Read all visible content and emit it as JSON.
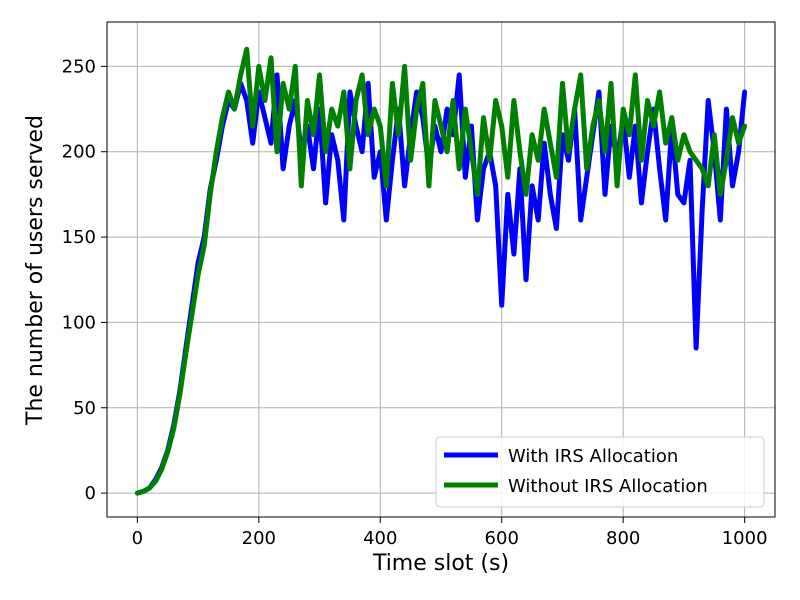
{
  "chart_data": {
    "type": "line",
    "title": "",
    "xlabel": "Time slot (s)",
    "ylabel": "The number of users served",
    "xlim": [
      -50,
      1050
    ],
    "ylim": [
      -14,
      276
    ],
    "xticks": [
      0,
      200,
      400,
      600,
      800,
      1000
    ],
    "yticks": [
      0,
      50,
      100,
      150,
      200,
      250
    ],
    "grid": true,
    "legend_position": "lower-right",
    "series": [
      {
        "name": "With IRS Allocation",
        "color": "#0000ff",
        "x": [
          0,
          10,
          20,
          30,
          40,
          50,
          60,
          70,
          80,
          90,
          100,
          110,
          120,
          130,
          140,
          150,
          160,
          170,
          180,
          190,
          200,
          210,
          220,
          230,
          240,
          250,
          260,
          270,
          280,
          290,
          300,
          310,
          320,
          330,
          340,
          350,
          360,
          370,
          380,
          390,
          400,
          410,
          420,
          430,
          440,
          450,
          460,
          470,
          480,
          490,
          500,
          510,
          520,
          530,
          540,
          550,
          560,
          570,
          580,
          590,
          600,
          610,
          620,
          630,
          640,
          650,
          660,
          670,
          680,
          690,
          700,
          710,
          720,
          730,
          740,
          750,
          760,
          770,
          780,
          790,
          800,
          810,
          820,
          830,
          840,
          850,
          860,
          870,
          880,
          890,
          900,
          910,
          920,
          930,
          940,
          950,
          960,
          970,
          980,
          990,
          1000
        ],
        "values": [
          0,
          1,
          3,
          8,
          15,
          25,
          40,
          60,
          85,
          110,
          135,
          150,
          178,
          195,
          215,
          230,
          225,
          240,
          230,
          205,
          235,
          220,
          205,
          245,
          190,
          215,
          230,
          200,
          215,
          190,
          225,
          170,
          210,
          195,
          160,
          235,
          215,
          200,
          240,
          185,
          200,
          160,
          195,
          225,
          180,
          210,
          235,
          220,
          190,
          215,
          200,
          225,
          210,
          245,
          185,
          215,
          160,
          190,
          200,
          180,
          110,
          175,
          140,
          190,
          125,
          180,
          160,
          205,
          175,
          155,
          210,
          195,
          225,
          160,
          185,
          210,
          235,
          175,
          215,
          195,
          220,
          185,
          215,
          170,
          200,
          225,
          190,
          160,
          215,
          175,
          170,
          195,
          85,
          165,
          230,
          200,
          160,
          225,
          180,
          200,
          235
        ]
      },
      {
        "name": "Without IRS Allocation",
        "color": "#008000",
        "x": [
          0,
          10,
          20,
          30,
          40,
          50,
          60,
          70,
          80,
          90,
          100,
          110,
          120,
          130,
          140,
          150,
          160,
          170,
          180,
          190,
          200,
          210,
          220,
          230,
          240,
          250,
          260,
          270,
          280,
          290,
          300,
          310,
          320,
          330,
          340,
          350,
          360,
          370,
          380,
          390,
          400,
          410,
          420,
          430,
          440,
          450,
          460,
          470,
          480,
          490,
          500,
          510,
          520,
          530,
          540,
          550,
          560,
          570,
          580,
          590,
          600,
          610,
          620,
          630,
          640,
          650,
          660,
          670,
          680,
          690,
          700,
          710,
          720,
          730,
          740,
          750,
          760,
          770,
          780,
          790,
          800,
          810,
          820,
          830,
          840,
          850,
          860,
          870,
          880,
          890,
          900,
          910,
          920,
          930,
          940,
          950,
          960,
          970,
          980,
          990,
          1000
        ],
        "values": [
          0,
          1,
          3,
          7,
          14,
          24,
          38,
          58,
          82,
          105,
          128,
          145,
          175,
          200,
          220,
          235,
          225,
          245,
          260,
          215,
          250,
          230,
          255,
          200,
          240,
          225,
          250,
          180,
          230,
          210,
          245,
          200,
          225,
          215,
          235,
          190,
          230,
          245,
          210,
          225,
          215,
          180,
          240,
          210,
          250,
          195,
          225,
          240,
          180,
          230,
          215,
          200,
          230,
          190,
          225,
          200,
          175,
          220,
          195,
          230,
          215,
          185,
          230,
          200,
          175,
          210,
          195,
          225,
          205,
          185,
          240,
          200,
          225,
          245,
          190,
          215,
          230,
          200,
          240,
          180,
          225,
          210,
          245,
          195,
          230,
          215,
          235,
          205,
          220,
          195,
          210,
          200,
          195,
          190,
          180,
          210,
          175,
          195,
          220,
          205,
          215
        ]
      }
    ]
  }
}
